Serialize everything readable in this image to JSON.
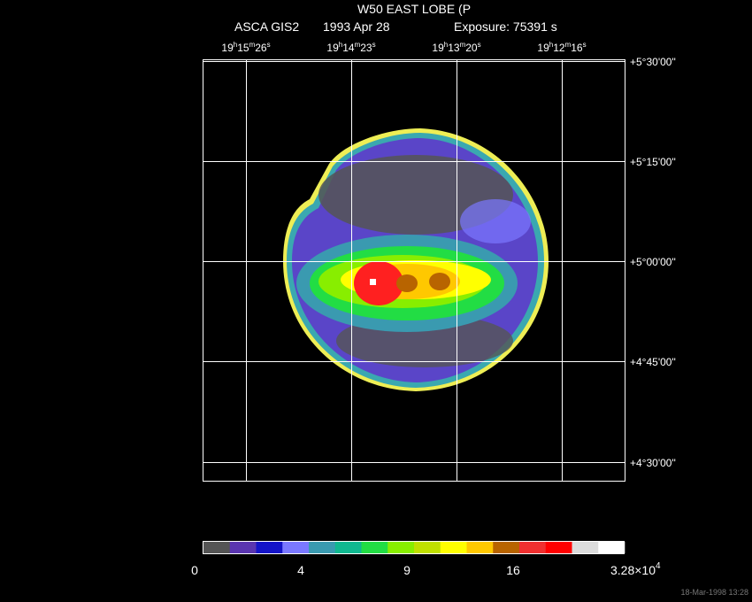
{
  "header": {
    "title": "W50 EAST LOBE (P",
    "instrument": "ASCA GIS2",
    "date": "1993 Apr 28",
    "exposure": "Exposure: 75391 s"
  },
  "ra_labels": [
    [
      "19",
      "h",
      "15",
      "m",
      "26",
      "s"
    ],
    [
      "19",
      "h",
      "14",
      "m",
      "23",
      "s"
    ],
    [
      "19",
      "h",
      "13",
      "m",
      "20",
      "s"
    ],
    [
      "19",
      "h",
      "12",
      "m",
      "16",
      "s"
    ]
  ],
  "dec_labels": [
    "+5°30'00\"",
    "+5°15'00\"",
    "+5°00'00\"",
    "+4°45'00\"",
    "+4°30'00\""
  ],
  "colorbar": {
    "colors": [
      "#555555",
      "#5a35b0",
      "#1414c8",
      "#7a78ff",
      "#3a9ab0",
      "#10b890",
      "#22dd44",
      "#88ee00",
      "#c0e000",
      "#ffff00",
      "#ffc800",
      "#b86400",
      "#f03030",
      "#ff0000",
      "#dcdcdc",
      "#ffffff"
    ],
    "labels": [
      "0",
      "4",
      "9",
      "16",
      [
        "3.28×10",
        "4"
      ]
    ]
  },
  "timestamp": "18-Mar-1998 13:28"
}
